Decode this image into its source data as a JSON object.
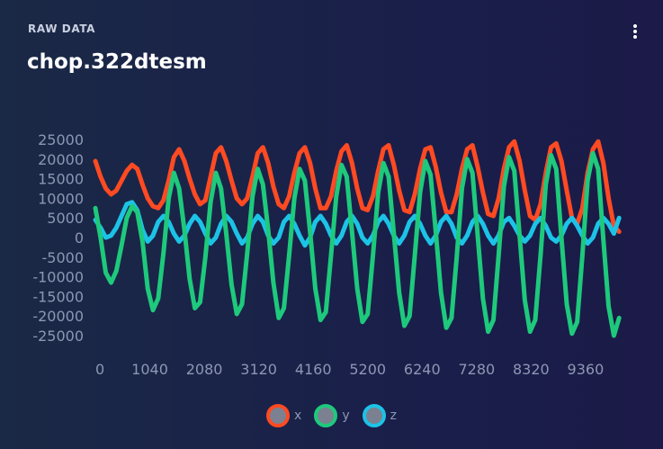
{
  "header": {
    "section_label": "RAW DATA",
    "title": "chop.322dtesm",
    "menu_icon": "more-vertical-icon"
  },
  "colors": {
    "x": "#ff4a22",
    "y": "#1ec97c",
    "z": "#1cc3e6",
    "tick": "#8d97b3",
    "legend_fill": "#7b8191"
  },
  "chart_data": {
    "type": "line",
    "title": "",
    "xlabel": "",
    "ylabel": "",
    "xlim": [
      0,
      10100
    ],
    "ylim": [
      -25000,
      25000
    ],
    "x_ticks": [
      0,
      1040,
      2080,
      3120,
      4160,
      5200,
      6240,
      7280,
      8320,
      9360
    ],
    "y_ticks": [
      25000,
      20000,
      15000,
      10000,
      5000,
      0,
      -5000,
      -10000,
      -15000,
      -20000,
      -25000
    ],
    "grid": false,
    "legend_position": "bottom-center",
    "x": [
      0,
      100,
      200,
      300,
      400,
      500,
      600,
      700,
      800,
      900,
      1000,
      1100,
      1200,
      1300,
      1400,
      1500,
      1600,
      1700,
      1800,
      1900,
      2000,
      2100,
      2200,
      2300,
      2400,
      2500,
      2600,
      2700,
      2800,
      2900,
      3000,
      3100,
      3200,
      3300,
      3400,
      3500,
      3600,
      3700,
      3800,
      3900,
      4000,
      4100,
      4200,
      4300,
      4400,
      4500,
      4600,
      4700,
      4800,
      4900,
      5000,
      5100,
      5200,
      5300,
      5400,
      5500,
      5600,
      5700,
      5800,
      5900,
      6000,
      6100,
      6200,
      6300,
      6400,
      6500,
      6600,
      6700,
      6800,
      6900,
      7000,
      7100,
      7200,
      7300,
      7400,
      7500,
      7600,
      7700,
      7800,
      7900,
      8000,
      8100,
      8200,
      8300,
      8400,
      8500,
      8600,
      8700,
      8800,
      8900,
      9000,
      9100,
      9200,
      9300,
      9400,
      9500,
      9600,
      9700,
      9800,
      9900,
      10000
    ],
    "series": [
      {
        "name": "x",
        "values": [
          19500,
          15500,
          12500,
          11000,
          12000,
          14500,
          17000,
          18500,
          17500,
          13500,
          10000,
          8000,
          7500,
          9500,
          14500,
          20500,
          22500,
          19500,
          15000,
          11000,
          8500,
          9500,
          15500,
          21500,
          23000,
          19500,
          14500,
          10000,
          8500,
          10000,
          15500,
          21500,
          23000,
          19000,
          13000,
          8500,
          7500,
          10500,
          16500,
          21500,
          23000,
          19000,
          12500,
          7500,
          7500,
          10500,
          17000,
          22000,
          23500,
          19000,
          12500,
          7500,
          7000,
          10500,
          17000,
          22500,
          23500,
          18500,
          12000,
          7000,
          6500,
          11000,
          17500,
          22500,
          23000,
          18000,
          11500,
          6500,
          6500,
          11000,
          17500,
          22500,
          23500,
          18000,
          11500,
          6000,
          5500,
          10000,
          17500,
          23000,
          24500,
          19500,
          12000,
          5500,
          4500,
          8500,
          16500,
          23000,
          24000,
          19500,
          12000,
          5000,
          3500,
          7500,
          16500,
          22500,
          24500,
          19000,
          10000,
          3000,
          1500
        ]
      },
      {
        "name": "y",
        "values": [
          7500,
          0,
          -9000,
          -11500,
          -8500,
          -2000,
          5000,
          8000,
          6500,
          -1000,
          -13000,
          -18500,
          -15500,
          -4000,
          10000,
          16500,
          12500,
          2000,
          -10500,
          -18000,
          -16500,
          -5000,
          9000,
          16500,
          12500,
          1000,
          -12000,
          -19500,
          -17000,
          -4000,
          10500,
          17500,
          13500,
          2000,
          -11500,
          -20500,
          -18000,
          -4500,
          10000,
          17500,
          14500,
          1500,
          -13000,
          -21000,
          -19000,
          -4500,
          10500,
          18500,
          15500,
          1500,
          -13000,
          -21500,
          -19500,
          -4500,
          11500,
          19000,
          15500,
          1000,
          -14000,
          -22500,
          -20000,
          -4500,
          11500,
          19500,
          16000,
          1500,
          -14000,
          -23000,
          -20500,
          -5000,
          12500,
          20000,
          16500,
          500,
          -15500,
          -24000,
          -21000,
          -4500,
          13000,
          20500,
          17000,
          500,
          -16000,
          -24000,
          -21000,
          -4500,
          13500,
          21000,
          17500,
          0,
          -17000,
          -24500,
          -21500,
          -4500,
          14500,
          21500,
          17500,
          -500,
          -17500,
          -25000,
          -20500
        ]
      },
      {
        "name": "z",
        "values": [
          4500,
          2500,
          0,
          500,
          2500,
          5500,
          8500,
          9000,
          7000,
          2000,
          -1000,
          500,
          4000,
          5500,
          4000,
          1000,
          -1000,
          500,
          3500,
          5500,
          4000,
          1000,
          -1500,
          0,
          3500,
          5500,
          4000,
          1000,
          -1500,
          0,
          3500,
          5500,
          4000,
          500,
          -1500,
          0,
          4000,
          5500,
          3500,
          500,
          -2000,
          0,
          4000,
          5500,
          3500,
          500,
          -1500,
          500,
          4000,
          5500,
          3500,
          0,
          -1500,
          500,
          4000,
          5500,
          3500,
          500,
          -1500,
          500,
          4000,
          5500,
          3500,
          500,
          -1500,
          500,
          4000,
          5500,
          3500,
          0,
          -1500,
          500,
          4000,
          5500,
          3500,
          500,
          -1500,
          500,
          4000,
          5000,
          3000,
          500,
          -1000,
          500,
          3500,
          5000,
          3000,
          0,
          -1000,
          500,
          3500,
          5000,
          3000,
          500,
          -1500,
          0,
          3500,
          5000,
          3500,
          1000,
          5000
        ]
      }
    ]
  }
}
